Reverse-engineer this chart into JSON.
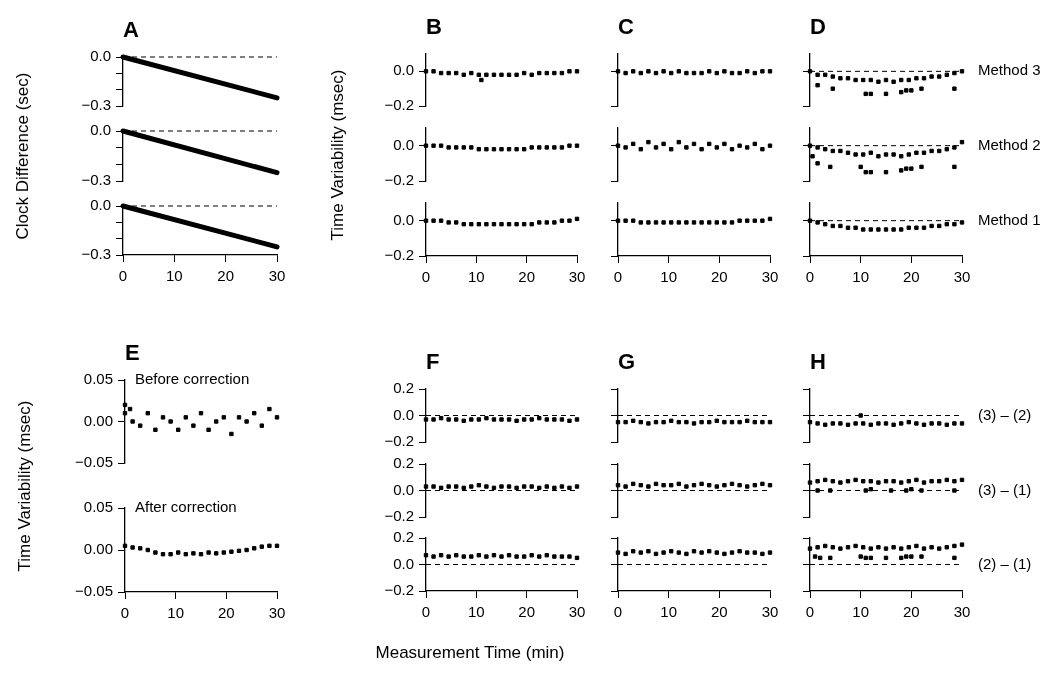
{
  "chart_data": [
    {
      "type": "line",
      "title": "A",
      "x": [
        0,
        30
      ],
      "values": [
        0,
        -0.25
      ],
      "color": "#000000",
      "xlim": [
        0,
        30
      ],
      "xticks": [
        0,
        10,
        20,
        30
      ],
      "ylim": [
        -0.3,
        0
      ],
      "yticks": [
        {
          "value": 0,
          "label": "0.0"
        },
        {
          "value": -0.1,
          "label": null
        },
        {
          "value": -0.2,
          "label": null
        },
        {
          "value": -0.3,
          "label": "−0.3"
        }
      ],
      "ref_lines": [
        {
          "axis": "y",
          "value": 0,
          "line_style": "dashed"
        }
      ],
      "tick_labels": "y"
    },
    {
      "type": "line",
      "ylabel": "Clock Difference (sec)",
      "x": [
        0,
        30
      ],
      "values": [
        0,
        -0.25
      ],
      "color": "#000000",
      "xlim": [
        0,
        30
      ],
      "xticks": [
        0,
        10,
        20,
        30
      ],
      "ylim": [
        -0.3,
        0
      ],
      "yticks": [
        {
          "value": 0,
          "label": "0.0"
        },
        {
          "value": -0.1,
          "label": null
        },
        {
          "value": -0.2,
          "label": null
        },
        {
          "value": -0.3,
          "label": "−0.3"
        }
      ],
      "ref_lines": [
        {
          "axis": "y",
          "value": 0,
          "line_style": "dashed"
        }
      ],
      "tick_labels": "y"
    },
    {
      "type": "line",
      "x": [
        0,
        30
      ],
      "values": [
        0,
        -0.25
      ],
      "color": "#000000",
      "xlim": [
        0,
        30
      ],
      "xticks": [
        0,
        10,
        20,
        30
      ],
      "ylim": [
        -0.3,
        0
      ],
      "yticks": [
        {
          "value": 0,
          "label": "0.0"
        },
        {
          "value": -0.1,
          "label": null
        },
        {
          "value": -0.2,
          "label": null
        },
        {
          "value": -0.3,
          "label": "−0.3"
        }
      ],
      "ref_lines": [
        {
          "axis": "y",
          "value": 0,
          "line_style": "dashed"
        }
      ]
    },
    {
      "type": "scatter",
      "title": "B",
      "marker": "square",
      "x": [
        0,
        1.5,
        3,
        4.5,
        6,
        7.5,
        9,
        10.5,
        12,
        13.5,
        15,
        16.5,
        18,
        19.5,
        21,
        22.5,
        24,
        25.5,
        27,
        28.5,
        30,
        11
      ],
      "values": [
        0,
        0,
        -0.01,
        -0.01,
        -0.01,
        -0.02,
        -0.01,
        -0.02,
        -0.02,
        -0.02,
        -0.02,
        -0.02,
        -0.02,
        -0.01,
        -0.02,
        -0.01,
        -0.01,
        -0.01,
        -0.01,
        0,
        0,
        -0.05
      ],
      "color": "#000000",
      "xlim": [
        0,
        30
      ],
      "xticks": [
        0,
        10,
        20,
        30
      ],
      "ylim": [
        -0.2,
        0.1
      ],
      "yticks": [
        {
          "value": 0,
          "label": "0.0"
        },
        {
          "value": -0.2,
          "label": "−0.2"
        }
      ],
      "tick_labels": "y"
    },
    {
      "type": "scatter",
      "ylabel": "Time Variability (msec)",
      "marker": "square",
      "x": [
        0,
        1.5,
        3,
        4.5,
        6,
        7.5,
        9,
        10.5,
        12,
        13.5,
        15,
        16.5,
        18,
        19.5,
        21,
        22.5,
        24,
        25.5,
        27,
        28.5,
        30
      ],
      "values": [
        0,
        0,
        0,
        -0.01,
        -0.01,
        -0.01,
        -0.01,
        -0.02,
        -0.02,
        -0.02,
        -0.02,
        -0.02,
        -0.02,
        -0.02,
        -0.01,
        -0.01,
        -0.01,
        -0.01,
        -0.01,
        0,
        0
      ],
      "color": "#000000",
      "xlim": [
        0,
        30
      ],
      "xticks": [
        0,
        10,
        20,
        30
      ],
      "ylim": [
        -0.2,
        0.1
      ],
      "yticks": [
        {
          "value": 0,
          "label": "0.0"
        },
        {
          "value": -0.2,
          "label": "−0.2"
        }
      ],
      "tick_labels": "y"
    },
    {
      "type": "scatter",
      "marker": "square",
      "x": [
        0,
        1.5,
        3,
        4.5,
        6,
        7.5,
        9,
        10.5,
        12,
        13.5,
        15,
        16.5,
        18,
        19.5,
        21,
        22.5,
        24,
        25.5,
        27,
        28.5,
        30
      ],
      "values": [
        0,
        0,
        0,
        -0.01,
        -0.01,
        -0.02,
        -0.02,
        -0.02,
        -0.02,
        -0.02,
        -0.02,
        -0.02,
        -0.02,
        -0.02,
        -0.02,
        -0.01,
        -0.01,
        -0.01,
        0,
        0,
        0.01
      ],
      "color": "#000000",
      "xlim": [
        0,
        30
      ],
      "xticks": [
        0,
        10,
        20,
        30
      ],
      "ylim": [
        -0.2,
        0.1
      ],
      "yticks": [
        {
          "value": 0,
          "label": "0.0"
        },
        {
          "value": -0.2,
          "label": "−0.2"
        }
      ]
    },
    {
      "type": "scatter",
      "title": "C",
      "marker": "square",
      "x": [
        0,
        1.5,
        3,
        4.5,
        6,
        7.5,
        9,
        10.5,
        12,
        13.5,
        15,
        16.5,
        18,
        19.5,
        21,
        22.5,
        24,
        25.5,
        27,
        28.5,
        30
      ],
      "values": [
        0,
        -0.01,
        0,
        -0.01,
        0,
        -0.01,
        0,
        -0.01,
        0,
        -0.01,
        -0.01,
        -0.01,
        0,
        -0.01,
        0,
        -0.01,
        -0.01,
        0,
        -0.01,
        0,
        0
      ],
      "color": "#000000",
      "xlim": [
        0,
        30
      ],
      "xticks": [
        0,
        10,
        20,
        30
      ],
      "ylim": [
        -0.2,
        0.1
      ],
      "yticks": [
        {
          "value": 0,
          "label": null
        },
        {
          "value": -0.2,
          "label": null
        }
      ],
      "tick_labels": false
    },
    {
      "type": "scatter",
      "marker": "square",
      "x": [
        0,
        1.5,
        3,
        4.5,
        6,
        7.5,
        9,
        10.5,
        12,
        13.5,
        15,
        16.5,
        18,
        19.5,
        21,
        22.5,
        24,
        25.5,
        27,
        28.5,
        30
      ],
      "values": [
        0,
        -0.01,
        0.01,
        -0.02,
        0.02,
        -0.01,
        0.01,
        -0.02,
        0.02,
        -0.01,
        0.01,
        -0.02,
        0.01,
        -0.01,
        0.01,
        -0.02,
        0,
        -0.01,
        0.01,
        -0.02,
        0
      ],
      "color": "#000000",
      "xlim": [
        0,
        30
      ],
      "xticks": [
        0,
        10,
        20,
        30
      ],
      "ylim": [
        -0.2,
        0.1
      ],
      "yticks": [
        {
          "value": 0,
          "label": null
        },
        {
          "value": -0.2,
          "label": null
        }
      ],
      "tick_labels": false
    },
    {
      "type": "scatter",
      "marker": "square",
      "x": [
        0,
        1.5,
        3,
        4.5,
        6,
        7.5,
        9,
        10.5,
        12,
        13.5,
        15,
        16.5,
        18,
        19.5,
        21,
        22.5,
        24,
        25.5,
        27,
        28.5,
        30
      ],
      "values": [
        0,
        0,
        0,
        -0.01,
        -0.01,
        -0.01,
        -0.01,
        -0.01,
        -0.01,
        -0.01,
        -0.01,
        -0.01,
        -0.01,
        -0.01,
        -0.01,
        -0.01,
        0,
        0,
        0,
        0,
        0.01
      ],
      "color": "#000000",
      "xlim": [
        0,
        30
      ],
      "xticks": [
        0,
        10,
        20,
        30
      ],
      "ylim": [
        -0.2,
        0.1
      ],
      "yticks": [
        {
          "value": 0,
          "label": null
        },
        {
          "value": -0.2,
          "label": null
        }
      ],
      "tick_labels": "x"
    },
    {
      "type": "scatter",
      "title": "D",
      "marker": "square",
      "annotations": [
        "Method 3"
      ],
      "x": [
        0,
        1.5,
        3,
        4.5,
        6,
        7.5,
        9,
        10.5,
        12,
        13.5,
        15,
        16.5,
        18,
        19.5,
        21,
        22.5,
        24,
        25.5,
        27,
        28.5,
        30,
        1.5,
        4.5,
        11,
        12,
        15,
        18,
        19,
        20,
        22,
        28.5
      ],
      "values": [
        0,
        -0.02,
        -0.02,
        -0.03,
        -0.04,
        -0.04,
        -0.05,
        -0.05,
        -0.05,
        -0.06,
        -0.05,
        -0.06,
        -0.05,
        -0.05,
        -0.04,
        -0.04,
        -0.03,
        -0.03,
        -0.02,
        -0.01,
        0,
        -0.08,
        -0.1,
        -0.13,
        -0.13,
        -0.13,
        -0.12,
        -0.11,
        -0.11,
        -0.1,
        -0.1
      ],
      "color": "#000000",
      "xlim": [
        0,
        30
      ],
      "xticks": [
        0,
        10,
        20,
        30
      ],
      "ylim": [
        -0.2,
        0.1
      ],
      "yticks": [
        {
          "value": 0,
          "label": null
        },
        {
          "value": -0.2,
          "label": null
        }
      ],
      "ref_lines": [
        {
          "axis": "y",
          "value": 0,
          "line_style": "dashed"
        }
      ],
      "tick_labels": false
    },
    {
      "type": "scatter",
      "marker": "square",
      "annotations": [
        "Method 2"
      ],
      "x": [
        0,
        1.5,
        3,
        4.5,
        6,
        7.5,
        9,
        10.5,
        12,
        13.5,
        15,
        16.5,
        18,
        19.5,
        21,
        22.5,
        24,
        25.5,
        27,
        28.5,
        30,
        0.5,
        1.5,
        4,
        10,
        11,
        12,
        15,
        18,
        19,
        20,
        22,
        28.5
      ],
      "values": [
        0,
        -0.01,
        -0.02,
        -0.03,
        -0.03,
        -0.04,
        -0.05,
        -0.05,
        -0.04,
        -0.06,
        -0.05,
        -0.05,
        -0.06,
        -0.05,
        -0.04,
        -0.04,
        -0.03,
        -0.03,
        -0.02,
        -0.01,
        0.02,
        -0.06,
        -0.1,
        -0.12,
        -0.12,
        -0.15,
        -0.15,
        -0.15,
        -0.14,
        -0.13,
        -0.13,
        -0.12,
        -0.12
      ],
      "color": "#000000",
      "xlim": [
        0,
        30
      ],
      "xticks": [
        0,
        10,
        20,
        30
      ],
      "ylim": [
        -0.2,
        0.1
      ],
      "yticks": [
        {
          "value": 0,
          "label": null
        },
        {
          "value": -0.2,
          "label": null
        }
      ],
      "ref_lines": [
        {
          "axis": "y",
          "value": 0,
          "line_style": "dashed"
        }
      ],
      "tick_labels": false
    },
    {
      "type": "scatter",
      "marker": "square",
      "annotations": [
        "Method 1"
      ],
      "x": [
        0,
        1.5,
        3,
        4.5,
        6,
        7.5,
        9,
        10.5,
        12,
        13.5,
        15,
        16.5,
        18,
        19.5,
        21,
        22.5,
        24,
        25.5,
        27,
        28.5,
        30
      ],
      "values": [
        0,
        -0.01,
        -0.02,
        -0.03,
        -0.03,
        -0.04,
        -0.04,
        -0.05,
        -0.05,
        -0.05,
        -0.05,
        -0.05,
        -0.05,
        -0.04,
        -0.04,
        -0.04,
        -0.03,
        -0.03,
        -0.02,
        -0.02,
        -0.01
      ],
      "color": "#000000",
      "xlim": [
        0,
        30
      ],
      "xticks": [
        0,
        10,
        20,
        30
      ],
      "ylim": [
        -0.2,
        0.1
      ],
      "yticks": [
        {
          "value": 0,
          "label": null
        },
        {
          "value": -0.2,
          "label": null
        }
      ],
      "ref_lines": [
        {
          "axis": "y",
          "value": 0,
          "line_style": "dashed"
        }
      ],
      "tick_labels": "x"
    },
    {
      "type": "scatter",
      "title": "E",
      "ylabel": "Time Variability (msec)",
      "marker": "square",
      "annotations": [
        "Before correction"
      ],
      "x": [
        0,
        1.5,
        3,
        4.5,
        6,
        7.5,
        9,
        10.5,
        12,
        13.5,
        15,
        16.5,
        18,
        19.5,
        21,
        22.5,
        24,
        25.5,
        27,
        28.5,
        30,
        0,
        1
      ],
      "values": [
        0.01,
        0,
        -0.005,
        0.01,
        -0.01,
        0.005,
        0,
        -0.01,
        0.005,
        -0.005,
        0.01,
        -0.01,
        0,
        0.005,
        -0.015,
        0.005,
        0,
        0.01,
        -0.005,
        0.015,
        0.005,
        0.02,
        0.015
      ],
      "color": "#000000",
      "xlim": [
        0,
        30
      ],
      "xticks": [
        0,
        10,
        20,
        30
      ],
      "ylim": [
        -0.05,
        0.05
      ],
      "yticks": [
        {
          "value": 0.05,
          "label": "0.05"
        },
        {
          "value": 0,
          "label": "0.00"
        },
        {
          "value": -0.05,
          "label": "−0.05"
        }
      ],
      "tick_labels": "y"
    },
    {
      "type": "scatter",
      "marker": "square",
      "annotations": [
        "After correction"
      ],
      "x": [
        0,
        1.5,
        3,
        4.5,
        6,
        7.5,
        9,
        10.5,
        12,
        13.5,
        15,
        16.5,
        18,
        19.5,
        21,
        22.5,
        24,
        25.5,
        27,
        28.5,
        30
      ],
      "values": [
        0.005,
        0.003,
        0.002,
        0,
        -0.003,
        -0.005,
        -0.005,
        -0.003,
        -0.005,
        -0.004,
        -0.005,
        -0.003,
        -0.004,
        -0.003,
        -0.002,
        -0.001,
        0,
        0.002,
        0.004,
        0.005,
        0.005
      ],
      "color": "#000000",
      "xlim": [
        0,
        30
      ],
      "xticks": [
        0,
        10,
        20,
        30
      ],
      "ylim": [
        -0.05,
        0.05
      ],
      "yticks": [
        {
          "value": 0.05,
          "label": "0.05"
        },
        {
          "value": 0,
          "label": "0.00"
        },
        {
          "value": -0.05,
          "label": "−0.05"
        }
      ]
    },
    {
      "type": "scatter",
      "title": "F",
      "marker": "square",
      "x": [
        0,
        1.5,
        3,
        4.5,
        6,
        7.5,
        9,
        10.5,
        12,
        13.5,
        15,
        16.5,
        18,
        19.5,
        21,
        22.5,
        24,
        25.5,
        27,
        28.5,
        30
      ],
      "values": [
        -0.03,
        -0.03,
        -0.02,
        -0.03,
        -0.03,
        -0.04,
        -0.03,
        -0.03,
        -0.02,
        -0.03,
        -0.03,
        -0.03,
        -0.04,
        -0.03,
        -0.03,
        -0.02,
        -0.03,
        -0.03,
        -0.03,
        -0.04,
        -0.03
      ],
      "color": "#000000",
      "xlim": [
        0,
        30
      ],
      "xticks": [
        0,
        10,
        20,
        30
      ],
      "ylim": [
        -0.2,
        0.2
      ],
      "yticks": [
        {
          "value": 0.2,
          "label": "0.2"
        },
        {
          "value": 0,
          "label": "0.0"
        },
        {
          "value": -0.2,
          "label": "−0.2"
        }
      ],
      "ref_lines": [
        {
          "axis": "y",
          "value": 0,
          "line_style": "dashed"
        }
      ],
      "tick_labels": "y"
    },
    {
      "type": "scatter",
      "marker": "square",
      "x": [
        0,
        1.5,
        3,
        4.5,
        6,
        7.5,
        9,
        10.5,
        12,
        13.5,
        15,
        16.5,
        18,
        19.5,
        21,
        22.5,
        24,
        25.5,
        27,
        28.5,
        30
      ],
      "values": [
        0.03,
        0.03,
        0.02,
        0.03,
        0.03,
        0.02,
        0.03,
        0.04,
        0.03,
        0.02,
        0.03,
        0.03,
        0.02,
        0.03,
        0.03,
        0.02,
        0.03,
        0.02,
        0.03,
        0.02,
        0.03
      ],
      "color": "#000000",
      "xlim": [
        0,
        30
      ],
      "xticks": [
        0,
        10,
        20,
        30
      ],
      "ylim": [
        -0.2,
        0.2
      ],
      "yticks": [
        {
          "value": 0.2,
          "label": "0.2"
        },
        {
          "value": 0,
          "label": "0.0"
        },
        {
          "value": -0.2,
          "label": "−0.2"
        }
      ],
      "ref_lines": [
        {
          "axis": "y",
          "value": 0,
          "line_style": "dashed"
        }
      ],
      "tick_labels": "y"
    },
    {
      "type": "scatter",
      "marker": "square",
      "xlabel": "Measurement Time (min)",
      "x": [
        0,
        1.5,
        3,
        4.5,
        6,
        7.5,
        9,
        10.5,
        12,
        13.5,
        15,
        16.5,
        18,
        19.5,
        21,
        22.5,
        24,
        25.5,
        27,
        28.5,
        30
      ],
      "values": [
        0.07,
        0.06,
        0.07,
        0.06,
        0.07,
        0.06,
        0.06,
        0.07,
        0.06,
        0.07,
        0.06,
        0.07,
        0.06,
        0.06,
        0.07,
        0.06,
        0.07,
        0.06,
        0.06,
        0.06,
        0.05
      ],
      "color": "#000000",
      "xlim": [
        0,
        30
      ],
      "xticks": [
        0,
        10,
        20,
        30
      ],
      "ylim": [
        -0.2,
        0.2
      ],
      "yticks": [
        {
          "value": 0.2,
          "label": "0.2"
        },
        {
          "value": 0,
          "label": "0.0"
        },
        {
          "value": -0.2,
          "label": "−0.2"
        }
      ],
      "ref_lines": [
        {
          "axis": "y",
          "value": 0,
          "line_style": "dashed"
        }
      ]
    },
    {
      "type": "scatter",
      "title": "G",
      "marker": "square",
      "x": [
        0,
        1.5,
        3,
        4.5,
        6,
        7.5,
        9,
        10.5,
        12,
        13.5,
        15,
        16.5,
        18,
        19.5,
        21,
        22.5,
        24,
        25.5,
        27,
        28.5,
        30
      ],
      "values": [
        -0.05,
        -0.05,
        -0.04,
        -0.05,
        -0.06,
        -0.05,
        -0.05,
        -0.04,
        -0.05,
        -0.05,
        -0.06,
        -0.05,
        -0.05,
        -0.04,
        -0.05,
        -0.05,
        -0.05,
        -0.04,
        -0.05,
        -0.05,
        -0.05
      ],
      "color": "#000000",
      "xlim": [
        0,
        30
      ],
      "xticks": [
        0,
        10,
        20,
        30
      ],
      "ylim": [
        -0.2,
        0.2
      ],
      "yticks": [
        {
          "value": 0.2,
          "label": null
        },
        {
          "value": 0,
          "label": null
        },
        {
          "value": -0.2,
          "label": null
        }
      ],
      "ref_lines": [
        {
          "axis": "y",
          "value": 0,
          "line_style": "dashed"
        }
      ],
      "tick_labels": false
    },
    {
      "type": "scatter",
      "marker": "square",
      "x": [
        0,
        1.5,
        3,
        4.5,
        6,
        7.5,
        9,
        10.5,
        12,
        13.5,
        15,
        16.5,
        18,
        19.5,
        21,
        22.5,
        24,
        25.5,
        27,
        28.5,
        30
      ],
      "values": [
        0.04,
        0.03,
        0.05,
        0.04,
        0.03,
        0.05,
        0.04,
        0.04,
        0.05,
        0.03,
        0.04,
        0.05,
        0.04,
        0.03,
        0.04,
        0.05,
        0.04,
        0.03,
        0.04,
        0.05,
        0.04
      ],
      "color": "#000000",
      "xlim": [
        0,
        30
      ],
      "xticks": [
        0,
        10,
        20,
        30
      ],
      "ylim": [
        -0.2,
        0.2
      ],
      "yticks": [
        {
          "value": 0.2,
          "label": null
        },
        {
          "value": 0,
          "label": null
        },
        {
          "value": -0.2,
          "label": null
        }
      ],
      "ref_lines": [
        {
          "axis": "y",
          "value": 0,
          "line_style": "dashed"
        }
      ],
      "tick_labels": false
    },
    {
      "type": "scatter",
      "marker": "square",
      "x": [
        0,
        1.5,
        3,
        4.5,
        6,
        7.5,
        9,
        10.5,
        12,
        13.5,
        15,
        16.5,
        18,
        19.5,
        21,
        22.5,
        24,
        25.5,
        27,
        28.5,
        30
      ],
      "values": [
        0.09,
        0.08,
        0.1,
        0.09,
        0.1,
        0.08,
        0.09,
        0.1,
        0.09,
        0.08,
        0.1,
        0.09,
        0.1,
        0.09,
        0.08,
        0.09,
        0.1,
        0.09,
        0.09,
        0.08,
        0.09
      ],
      "color": "#000000",
      "xlim": [
        0,
        30
      ],
      "xticks": [
        0,
        10,
        20,
        30
      ],
      "ylim": [
        -0.2,
        0.2
      ],
      "yticks": [
        {
          "value": 0.2,
          "label": null
        },
        {
          "value": 0,
          "label": null
        },
        {
          "value": -0.2,
          "label": null
        }
      ],
      "ref_lines": [
        {
          "axis": "y",
          "value": 0,
          "line_style": "dashed"
        }
      ],
      "tick_labels": "x"
    },
    {
      "type": "scatter",
      "title": "H",
      "marker": "square",
      "annotations": [
        "(3) – (2)"
      ],
      "x": [
        0,
        1.5,
        3,
        4.5,
        6,
        7.5,
        9,
        10.5,
        12,
        13.5,
        15,
        16.5,
        18,
        19.5,
        21,
        22.5,
        24,
        25.5,
        27,
        28.5,
        30,
        10
      ],
      "values": [
        -0.05,
        -0.06,
        -0.07,
        -0.06,
        -0.06,
        -0.07,
        -0.06,
        -0.06,
        -0.07,
        -0.06,
        -0.06,
        -0.07,
        -0.06,
        -0.05,
        -0.06,
        -0.07,
        -0.06,
        -0.06,
        -0.07,
        -0.06,
        -0.06,
        0
      ],
      "color": "#000000",
      "xlim": [
        0,
        30
      ],
      "xticks": [
        0,
        10,
        20,
        30
      ],
      "ylim": [
        -0.2,
        0.2
      ],
      "yticks": [
        {
          "value": 0.2,
          "label": null
        },
        {
          "value": 0,
          "label": null
        },
        {
          "value": -0.2,
          "label": null
        }
      ],
      "ref_lines": [
        {
          "axis": "y",
          "value": 0,
          "line_style": "dashed"
        }
      ],
      "tick_labels": false
    },
    {
      "type": "scatter",
      "marker": "square",
      "annotations": [
        "(3) – (1)"
      ],
      "x": [
        0,
        1.5,
        3,
        4.5,
        6,
        7.5,
        9,
        10.5,
        12,
        13.5,
        15,
        16.5,
        18,
        19.5,
        21,
        22.5,
        24,
        25.5,
        27,
        28.5,
        30,
        1.5,
        4,
        11,
        12,
        16,
        19,
        20,
        22,
        28.5
      ],
      "values": [
        0.06,
        0.07,
        0.08,
        0.07,
        0.06,
        0.07,
        0.08,
        0.07,
        0.07,
        0.06,
        0.07,
        0.07,
        0.06,
        0.07,
        0.08,
        0.06,
        0.07,
        0.07,
        0.08,
        0.07,
        0.08,
        0,
        0,
        0,
        0.01,
        0,
        0,
        0.01,
        0,
        0
      ],
      "color": "#000000",
      "xlim": [
        0,
        30
      ],
      "xticks": [
        0,
        10,
        20,
        30
      ],
      "ylim": [
        -0.2,
        0.2
      ],
      "yticks": [
        {
          "value": 0.2,
          "label": null
        },
        {
          "value": 0,
          "label": null
        },
        {
          "value": -0.2,
          "label": null
        }
      ],
      "ref_lines": [
        {
          "axis": "y",
          "value": 0,
          "line_style": "dashed"
        }
      ],
      "tick_labels": false
    },
    {
      "type": "scatter",
      "marker": "square",
      "annotations": [
        "(2) – (1)"
      ],
      "x": [
        0,
        1.5,
        3,
        4.5,
        6,
        7.5,
        9,
        10.5,
        12,
        13.5,
        15,
        16.5,
        18,
        19.5,
        21,
        22.5,
        24,
        25.5,
        27,
        28.5,
        30,
        1,
        2,
        4,
        10,
        11,
        12,
        15,
        18,
        19,
        20,
        22,
        28.5
      ],
      "values": [
        0.12,
        0.13,
        0.14,
        0.13,
        0.12,
        0.13,
        0.14,
        0.13,
        0.12,
        0.13,
        0.12,
        0.13,
        0.12,
        0.13,
        0.14,
        0.12,
        0.13,
        0.12,
        0.13,
        0.14,
        0.15,
        0.06,
        0.05,
        0.05,
        0.06,
        0.05,
        0.05,
        0.05,
        0.05,
        0.06,
        0.06,
        0.06,
        0.05
      ],
      "color": "#000000",
      "xlim": [
        0,
        30
      ],
      "xticks": [
        0,
        10,
        20,
        30
      ],
      "ylim": [
        -0.2,
        0.2
      ],
      "yticks": [
        {
          "value": 0.2,
          "label": null
        },
        {
          "value": 0,
          "label": null
        },
        {
          "value": -0.2,
          "label": null
        }
      ],
      "ref_lines": [
        {
          "axis": "y",
          "value": 0,
          "line_style": "dashed"
        }
      ],
      "tick_labels": "x"
    }
  ]
}
